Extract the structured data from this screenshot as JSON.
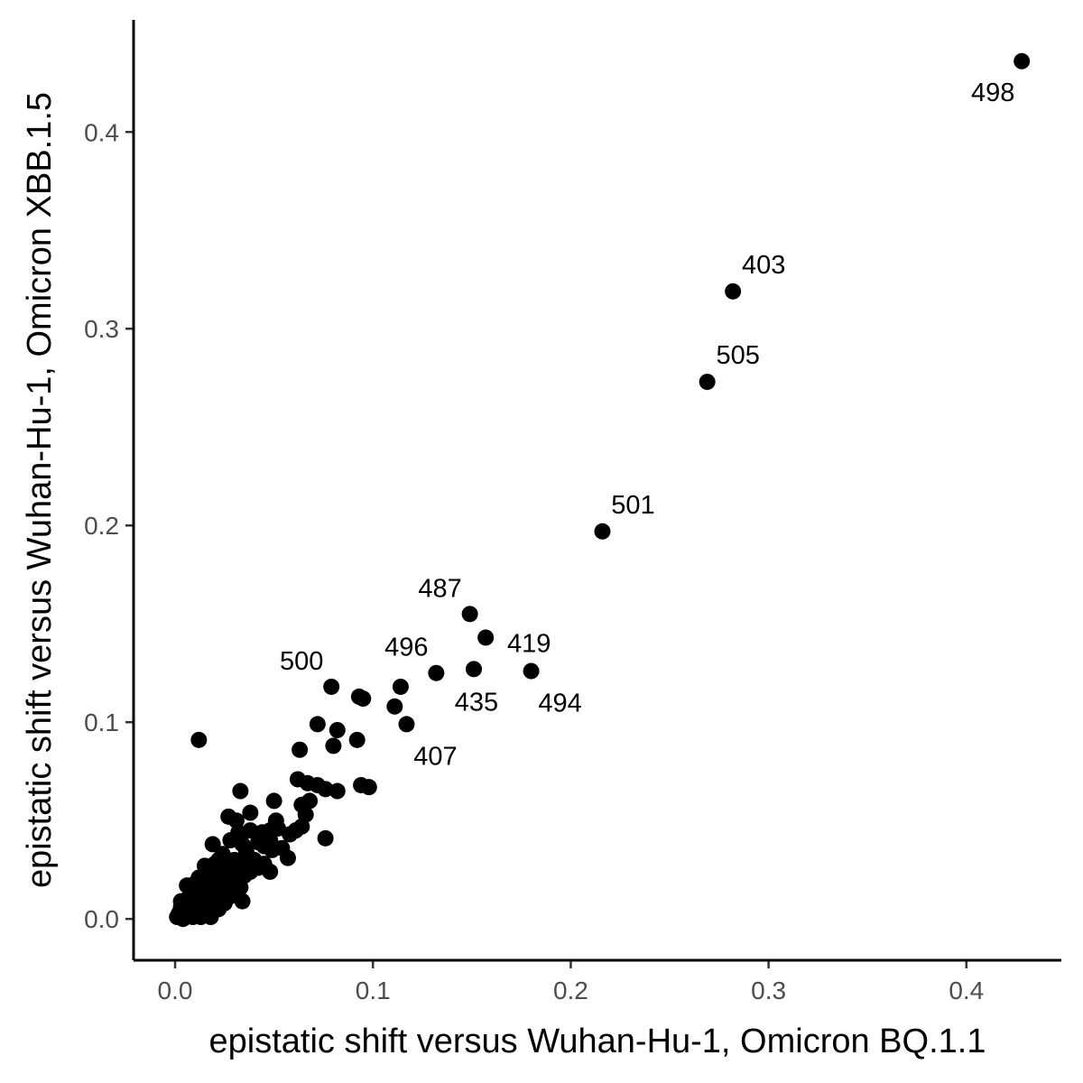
{
  "chart_data": {
    "type": "scatter",
    "xlabel": "epistatic shift versus Wuhan-Hu-1, Omicron BQ.1.1",
    "ylabel": "epistatic shift versus Wuhan-Hu-1, Omicron XBB.1.5",
    "xlim": [
      -0.021,
      0.448
    ],
    "ylim": [
      -0.021,
      0.457
    ],
    "x_ticks": [
      0.0,
      0.1,
      0.2,
      0.3,
      0.4
    ],
    "x_tick_labels": [
      "0.0",
      "0.1",
      "0.2",
      "0.3",
      "0.4"
    ],
    "y_ticks": [
      0.0,
      0.1,
      0.2,
      0.3,
      0.4
    ],
    "y_tick_labels": [
      "0.0",
      "0.1",
      "0.2",
      "0.3",
      "0.4"
    ],
    "grid": false,
    "legend": "none",
    "point_color": "#000000",
    "labeled_points": [
      {
        "label": "498",
        "x": 0.428,
        "y": 0.436,
        "label_pos": "below-left"
      },
      {
        "label": "403",
        "x": 0.282,
        "y": 0.319,
        "label_pos": "above-right"
      },
      {
        "label": "505",
        "x": 0.269,
        "y": 0.273,
        "label_pos": "above-right"
      },
      {
        "label": "501",
        "x": 0.216,
        "y": 0.197,
        "label_pos": "above-right"
      },
      {
        "label": "487",
        "x": 0.149,
        "y": 0.155,
        "label_pos": "above-left"
      },
      {
        "label": "419",
        "x": 0.157,
        "y": 0.143,
        "label_pos": "right"
      },
      {
        "label": "496",
        "x": 0.132,
        "y": 0.125,
        "label_pos": "above-left"
      },
      {
        "label": "435",
        "x": 0.151,
        "y": 0.127,
        "label_pos": "below"
      },
      {
        "label": "494",
        "x": 0.18,
        "y": 0.126,
        "label_pos": "below-right"
      },
      {
        "label": "500",
        "x": 0.079,
        "y": 0.118,
        "label_pos": "above-left"
      },
      {
        "label": "407",
        "x": 0.117,
        "y": 0.099,
        "label_pos": "below-right"
      }
    ],
    "points": [
      [
        0.012,
        0.091
      ],
      [
        0.114,
        0.118
      ],
      [
        0.111,
        0.108
      ],
      [
        0.093,
        0.113
      ],
      [
        0.095,
        0.112
      ],
      [
        0.072,
        0.099
      ],
      [
        0.082,
        0.096
      ],
      [
        0.092,
        0.091
      ],
      [
        0.063,
        0.086
      ],
      [
        0.08,
        0.088
      ],
      [
        0.094,
        0.068
      ],
      [
        0.098,
        0.067
      ],
      [
        0.082,
        0.065
      ],
      [
        0.062,
        0.071
      ],
      [
        0.067,
        0.069
      ],
      [
        0.072,
        0.068
      ],
      [
        0.076,
        0.066
      ],
      [
        0.076,
        0.041
      ],
      [
        0.068,
        0.06
      ],
      [
        0.064,
        0.058
      ],
      [
        0.05,
        0.06
      ],
      [
        0.066,
        0.053
      ],
      [
        0.064,
        0.047
      ],
      [
        0.058,
        0.043
      ],
      [
        0.061,
        0.045
      ],
      [
        0.051,
        0.05
      ],
      [
        0.048,
        0.045
      ],
      [
        0.052,
        0.046
      ],
      [
        0.044,
        0.044
      ],
      [
        0.048,
        0.04
      ],
      [
        0.054,
        0.036
      ],
      [
        0.049,
        0.035
      ],
      [
        0.057,
        0.031
      ],
      [
        0.045,
        0.037
      ],
      [
        0.033,
        0.065
      ],
      [
        0.038,
        0.054
      ],
      [
        0.027,
        0.052
      ],
      [
        0.031,
        0.05
      ],
      [
        0.038,
        0.045
      ],
      [
        0.042,
        0.039
      ],
      [
        0.032,
        0.044
      ],
      [
        0.034,
        0.038
      ],
      [
        0.028,
        0.04
      ],
      [
        0.036,
        0.034
      ],
      [
        0.019,
        0.038
      ],
      [
        0.04,
        0.03
      ],
      [
        0.045,
        0.028
      ],
      [
        0.048,
        0.024
      ],
      [
        0.024,
        0.033
      ],
      [
        0.03,
        0.03
      ],
      [
        0.035,
        0.029
      ],
      [
        0.022,
        0.03
      ],
      [
        0.026,
        0.026
      ],
      [
        0.02,
        0.028
      ],
      [
        0.03,
        0.024
      ],
      [
        0.015,
        0.027
      ],
      [
        0.038,
        0.024
      ],
      [
        0.042,
        0.026
      ],
      [
        0.035,
        0.022
      ],
      [
        0.032,
        0.019
      ],
      [
        0.028,
        0.021
      ],
      [
        0.024,
        0.02
      ],
      [
        0.02,
        0.022
      ],
      [
        0.016,
        0.024
      ],
      [
        0.012,
        0.021
      ],
      [
        0.018,
        0.018
      ],
      [
        0.022,
        0.017
      ],
      [
        0.027,
        0.016
      ],
      [
        0.01,
        0.018
      ],
      [
        0.014,
        0.016
      ],
      [
        0.006,
        0.017
      ],
      [
        0.02,
        0.014
      ],
      [
        0.017,
        0.012
      ],
      [
        0.024,
        0.012
      ],
      [
        0.012,
        0.013
      ],
      [
        0.009,
        0.012
      ],
      [
        0.015,
        0.01
      ],
      [
        0.019,
        0.009
      ],
      [
        0.006,
        0.01
      ],
      [
        0.01,
        0.008
      ],
      [
        0.013,
        0.007
      ],
      [
        0.007,
        0.006
      ],
      [
        0.003,
        0.006
      ],
      [
        0.004,
        0.004
      ],
      [
        0.002,
        0.003
      ],
      [
        0.001,
        0.001
      ],
      [
        0.005,
        0.002
      ],
      [
        0.008,
        0.003
      ],
      [
        0.011,
        0.004
      ],
      [
        0.014,
        0.004
      ],
      [
        0.017,
        0.005
      ],
      [
        0.003,
        0.009
      ],
      [
        0.008,
        0.014
      ],
      [
        0.016,
        0.019
      ],
      [
        0.025,
        0.008
      ],
      [
        0.022,
        0.005
      ],
      [
        0.034,
        0.009
      ],
      [
        0.031,
        0.013
      ],
      [
        0.027,
        0.011
      ],
      [
        0.018,
        0.001
      ],
      [
        0.009,
        0.001
      ],
      [
        0.004,
        0.0
      ],
      [
        0.013,
        0.001
      ],
      [
        0.025,
        0.015
      ],
      [
        0.029,
        0.018
      ],
      [
        0.033,
        0.016
      ]
    ]
  }
}
